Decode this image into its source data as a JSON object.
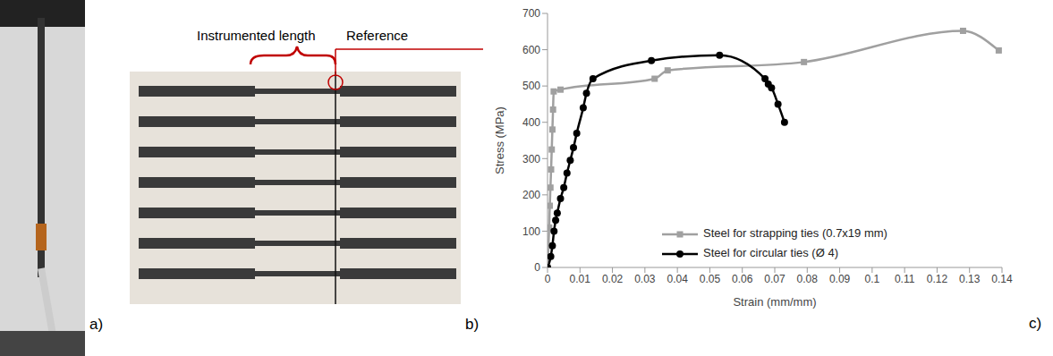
{
  "labels": {
    "a": "a)",
    "b": "b)",
    "c": "c)"
  },
  "annotations": {
    "instrumented": "Instrumented length",
    "reference": "Reference"
  },
  "chart_data": {
    "type": "line",
    "x_label": "Strain (mm/mm)",
    "y_label": "Stress (MPa)",
    "xlim": [
      0,
      0.14
    ],
    "xticks": [
      0,
      0.01,
      0.02,
      0.03,
      0.04,
      0.05,
      0.06,
      0.07,
      0.08,
      0.09,
      0.1,
      0.11,
      0.12,
      0.13,
      0.14
    ],
    "ylim": [
      0,
      700
    ],
    "yticks": [
      0,
      100,
      200,
      300,
      400,
      500,
      600,
      700
    ],
    "grid": false,
    "legend": "lower left",
    "series": [
      {
        "name": "Steel for strapping ties (0.7x19 mm)",
        "color": "#a0a0a0",
        "marker": "square",
        "x": [
          0,
          0.0003,
          0.0005,
          0.0007,
          0.0009,
          0.0011,
          0.0013,
          0.0015,
          0.0017,
          0.0019,
          0.004,
          0.033,
          0.037,
          0.079,
          0.128,
          0.139
        ],
        "values": [
          0,
          60,
          110,
          170,
          220,
          270,
          325,
          380,
          435,
          485,
          490,
          520,
          543,
          566,
          652,
          598
        ]
      },
      {
        "name": "Steel for circular ties (Ø 4)",
        "color": "#000000",
        "marker": "circle",
        "x": [
          0,
          0.001,
          0.0015,
          0.002,
          0.0025,
          0.003,
          0.004,
          0.005,
          0.006,
          0.007,
          0.008,
          0.009,
          0.011,
          0.012,
          0.014,
          0.032,
          0.053,
          0.067,
          0.068,
          0.069,
          0.071,
          0.073
        ],
        "values": [
          0,
          30,
          60,
          100,
          130,
          150,
          190,
          220,
          260,
          295,
          330,
          370,
          440,
          480,
          520,
          570,
          585,
          520,
          505,
          495,
          450,
          400
        ]
      }
    ]
  }
}
